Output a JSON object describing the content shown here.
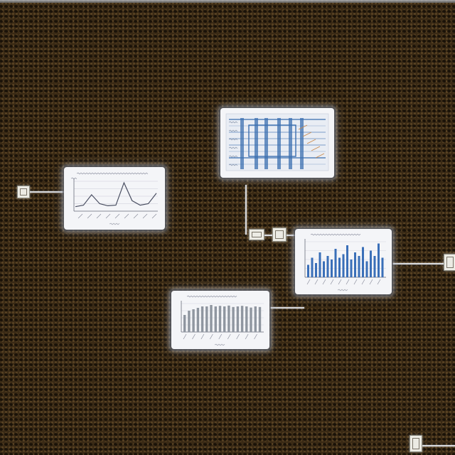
{
  "scene": {
    "background_color": "#3a2a15",
    "dot_color": "#1a1208",
    "panel_color": "#f4f5f8"
  },
  "panels": [
    {
      "kind": "line-chart",
      "line_color": "#4a4f62",
      "values": [
        0.15,
        0.2,
        0.55,
        0.25,
        0.18,
        0.2,
        0.95,
        0.35,
        0.2,
        0.25,
        0.6
      ]
    },
    {
      "kind": "flow-diagram",
      "line_color": "#3b6fb0"
    },
    {
      "kind": "bar-chart",
      "bar_color": "#3a6fb8",
      "values": [
        0.35,
        0.55,
        0.4,
        0.7,
        0.45,
        0.6,
        0.5,
        0.8,
        0.55,
        0.65,
        0.9,
        0.5,
        0.7,
        0.6,
        0.85,
        0.45,
        0.75,
        0.6,
        0.95,
        0.55
      ]
    },
    {
      "kind": "bar-chart",
      "bar_color": "#8f96a0",
      "values": [
        0.6,
        0.75,
        0.8,
        0.85,
        0.9,
        0.9,
        0.95,
        0.9,
        0.92,
        0.9,
        0.93,
        0.88,
        0.9,
        0.92,
        0.9,
        0.86,
        0.9,
        0.88
      ]
    }
  ]
}
